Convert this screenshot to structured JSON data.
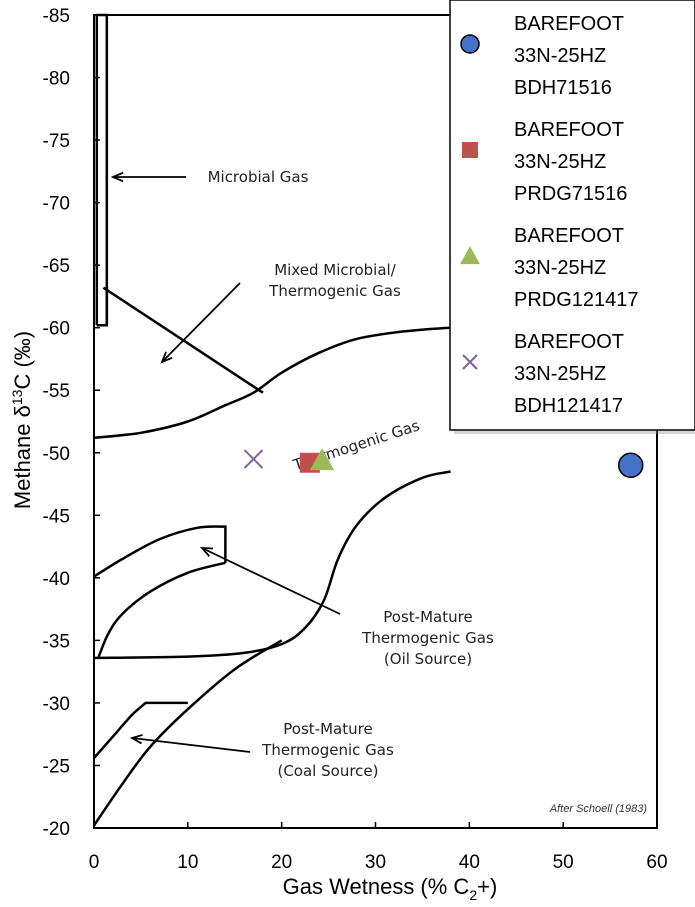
{
  "chart_data": {
    "type": "scatter",
    "title": "",
    "xlabel": "Gas Wetness (% C",
    "xlabel_sub": "2",
    "xlabel_tail": "+)",
    "ylabel": "Methane  δ",
    "ylabel_sup": "13",
    "ylabel_tail": "C (‰)",
    "xlim": [
      0,
      60
    ],
    "ylim": [
      -20,
      -85
    ],
    "x_ticks": [
      0,
      10,
      20,
      30,
      40,
      50,
      60
    ],
    "y_ticks": [
      -85,
      -80,
      -75,
      -70,
      -65,
      -60,
      -55,
      -50,
      -45,
      -40,
      -35,
      -30,
      -25,
      -20
    ],
    "grid": false,
    "legend_position": "top-right",
    "series": [
      {
        "name": "BAREFOOT 33N-25HZ BDH71516",
        "legend_lines": [
          "BAREFOOT",
          "33N-25HZ",
          "BDH71516"
        ],
        "marker": "circle",
        "color": "#4472C4",
        "x": [
          57.2
        ],
        "y": [
          -49.0
        ]
      },
      {
        "name": "BAREFOOT 33N-25HZ PRDG71516",
        "legend_lines": [
          "BAREFOOT",
          "33N-25HZ",
          "PRDG71516"
        ],
        "marker": "square",
        "color": "#C0504D",
        "x": [
          23.0
        ],
        "y": [
          -49.2
        ]
      },
      {
        "name": "BAREFOOT 33N-25HZ PRDG121417",
        "legend_lines": [
          "BAREFOOT",
          "33N-25HZ",
          "PRDG121417"
        ],
        "marker": "triangle",
        "color": "#9BBB59",
        "x": [
          24.3
        ],
        "y": [
          -49.4
        ]
      },
      {
        "name": "BAREFOOT 33N-25HZ BDH121417",
        "legend_lines": [
          "BAREFOOT",
          "33N-25HZ",
          "BDH121417"
        ],
        "marker": "x",
        "color": "#8064A2",
        "x": [
          17.0
        ],
        "y": [
          -49.5
        ]
      }
    ],
    "fields": [
      {
        "label_lines": [
          "Microbial Gas"
        ],
        "polyline": [
          [
            0.3,
            -85
          ],
          [
            0.3,
            -60.2
          ]
        ]
      },
      {
        "label_lines": [
          "Mixed Microbial/",
          "Thermogenic Gas"
        ],
        "polyline": [
          [
            1,
            -63.2
          ],
          [
            18,
            -54.8
          ]
        ]
      },
      {
        "label_lines": [
          "Thermogenic Gas"
        ],
        "polyline": [
          [
            0,
            -51.2
          ],
          [
            5,
            -51.6
          ],
          [
            10,
            -52.5
          ],
          [
            14,
            -53.8
          ],
          [
            17,
            -54.8
          ],
          [
            20,
            -56.4
          ],
          [
            24,
            -58.0
          ],
          [
            28,
            -59.1
          ],
          [
            33,
            -59.7
          ],
          [
            38,
            -60.0
          ],
          [
            42,
            -60.1
          ]
        ]
      },
      {
        "label_lines": [
          "Post-Mature",
          "Thermogenic Gas",
          "(Oil Source)"
        ],
        "polyline": [
          [
            0,
            -33.6
          ],
          [
            10,
            -33.7
          ],
          [
            16,
            -34.0
          ],
          [
            20,
            -34.7
          ],
          [
            22.5,
            -36.0
          ],
          [
            24.5,
            -38.2
          ],
          [
            26,
            -41.5
          ],
          [
            28,
            -44.2
          ],
          [
            31,
            -46.4
          ],
          [
            35,
            -48.0
          ],
          [
            38,
            -48.5
          ]
        ]
      },
      {
        "label_lines": [
          "Post-Mature",
          "Thermogenic Gas",
          "(Coal Source)"
        ],
        "polyline": [
          [
            0,
            -20.2
          ],
          [
            3,
            -23.5
          ],
          [
            6,
            -26.5
          ],
          [
            10,
            -29.5
          ],
          [
            15,
            -32.7
          ],
          [
            20,
            -35.0
          ]
        ]
      }
    ],
    "oil_box": [
      [
        0,
        -40.1
      ],
      [
        3,
        -41.5
      ],
      [
        7,
        -43.1
      ],
      [
        11,
        -44.0
      ],
      [
        14,
        -44.1
      ],
      [
        14,
        -41.2
      ]
    ],
    "oil_inner": [
      [
        0.5,
        -33.7
      ],
      [
        1.5,
        -35.5
      ],
      [
        3,
        -37.1
      ],
      [
        6,
        -38.9
      ],
      [
        10,
        -40.4
      ],
      [
        14,
        -41.2
      ]
    ],
    "coal_box": [
      [
        0,
        -25.6
      ],
      [
        2,
        -27.3
      ],
      [
        4,
        -29.0
      ],
      [
        5.5,
        -30.0
      ],
      [
        10,
        -30.0
      ]
    ],
    "credit": "After Schoell (1983)"
  }
}
